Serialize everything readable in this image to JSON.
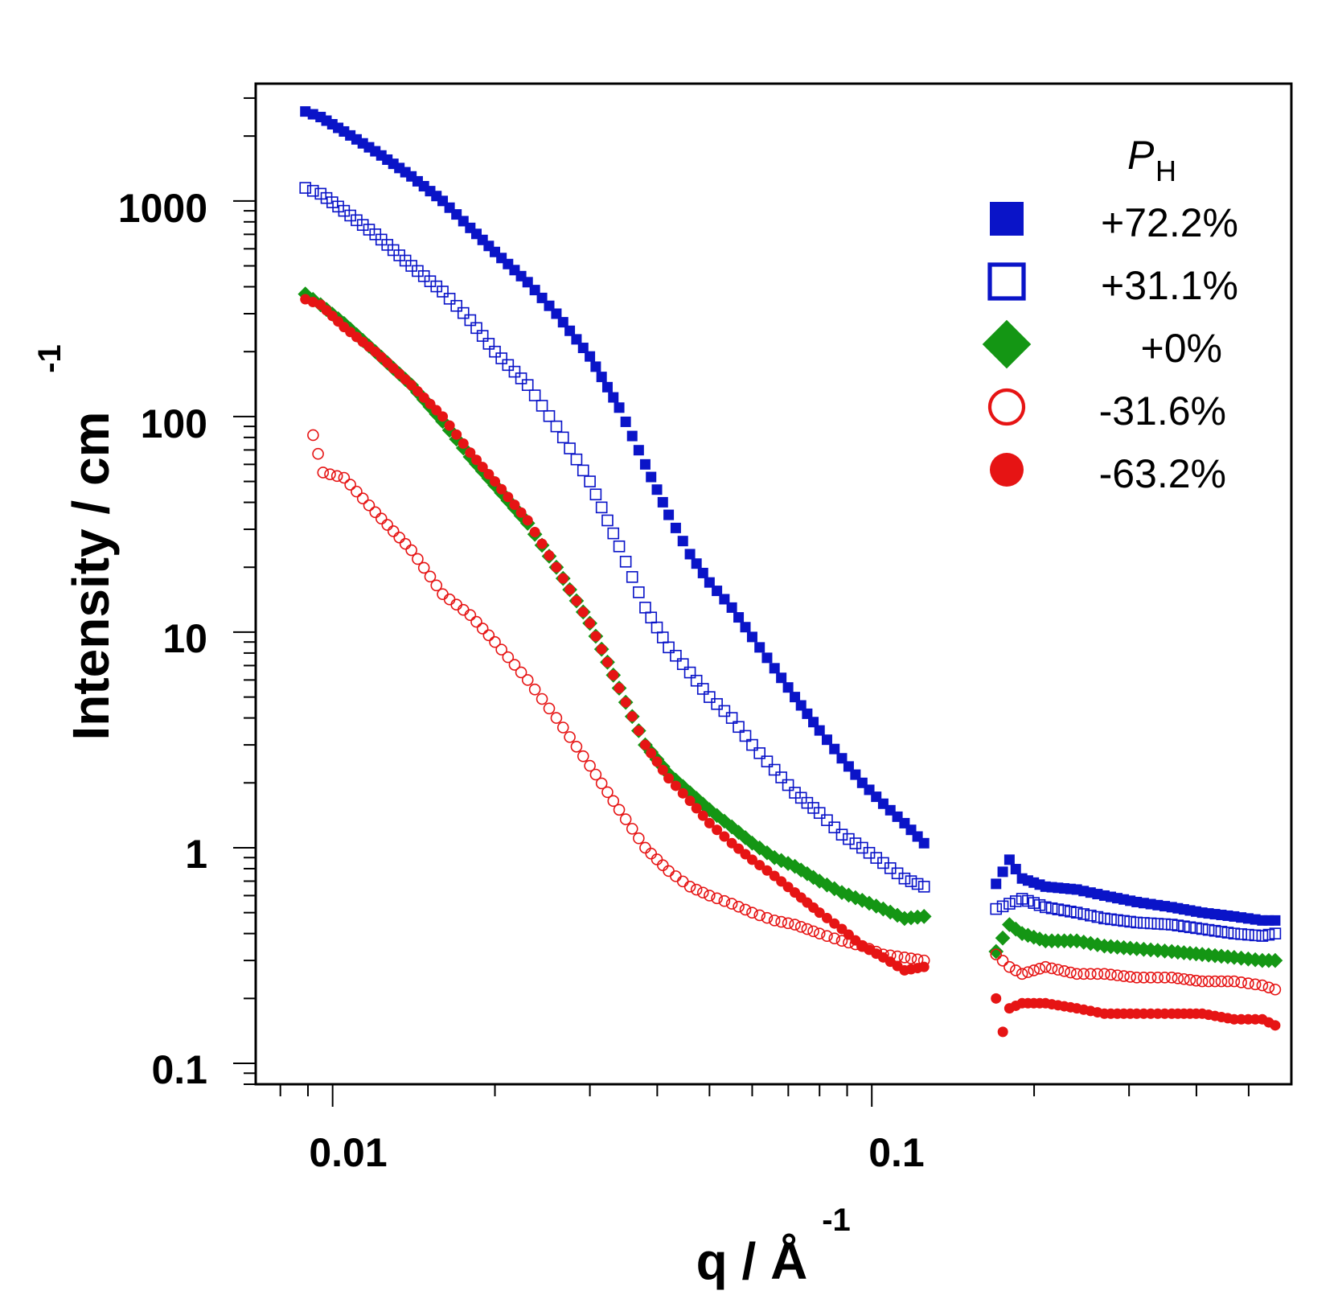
{
  "chart_data": {
    "type": "scatter",
    "x_scale": "log",
    "y_scale": "log",
    "xlim": [
      0.0072,
      0.6
    ],
    "ylim": [
      0.08,
      3500
    ],
    "x_ticks": [
      {
        "value": 0.01,
        "label": "0.01"
      },
      {
        "value": 0.1,
        "label": "0.1"
      }
    ],
    "y_ticks": [
      {
        "value": 0.1,
        "label": "0.1"
      },
      {
        "value": 1,
        "label": "1"
      },
      {
        "value": 10,
        "label": "10"
      },
      {
        "value": 100,
        "label": "100"
      },
      {
        "value": 1000,
        "label": "1000"
      }
    ],
    "xlabel": {
      "main": "q / Å",
      "sup": "-1"
    },
    "ylabel": {
      "main": "Intensity / cm",
      "sup": "-1"
    },
    "legend": {
      "title_main": "P",
      "title_sub": "H",
      "placement": "top-right"
    },
    "series": [
      {
        "name": "+72.2%",
        "marker": "square-filled",
        "color": "#0a14c8",
        "points": [
          [
            0.0089,
            2600
          ],
          [
            0.0095,
            2450
          ],
          [
            0.0105,
            2100
          ],
          [
            0.012,
            1700
          ],
          [
            0.014,
            1300
          ],
          [
            0.016,
            1000
          ],
          [
            0.018,
            750
          ],
          [
            0.02,
            580
          ],
          [
            0.023,
            420
          ],
          [
            0.026,
            300
          ],
          [
            0.03,
            190
          ],
          [
            0.034,
            110
          ],
          [
            0.038,
            60
          ],
          [
            0.042,
            35
          ],
          [
            0.046,
            23
          ],
          [
            0.05,
            17
          ],
          [
            0.055,
            13
          ],
          [
            0.06,
            9.5
          ],
          [
            0.066,
            6.8
          ],
          [
            0.072,
            5.0
          ],
          [
            0.08,
            3.5
          ],
          [
            0.088,
            2.6
          ],
          [
            0.096,
            2.0
          ],
          [
            0.105,
            1.6
          ],
          [
            0.115,
            1.3
          ],
          [
            0.125,
            1.05
          ],
          [
            0.17,
            0.68
          ],
          [
            0.18,
            0.88
          ],
          [
            0.19,
            0.72
          ],
          [
            0.21,
            0.66
          ],
          [
            0.24,
            0.64
          ],
          [
            0.27,
            0.6
          ],
          [
            0.31,
            0.56
          ],
          [
            0.36,
            0.53
          ],
          [
            0.41,
            0.5
          ],
          [
            0.47,
            0.48
          ],
          [
            0.53,
            0.46
          ],
          [
            0.56,
            0.46
          ]
        ]
      },
      {
        "name": "+31.1%",
        "marker": "square-open",
        "color": "#0a14c8",
        "points": [
          [
            0.0089,
            1150
          ],
          [
            0.0095,
            1080
          ],
          [
            0.0105,
            900
          ],
          [
            0.012,
            700
          ],
          [
            0.014,
            500
          ],
          [
            0.016,
            380
          ],
          [
            0.018,
            280
          ],
          [
            0.02,
            200
          ],
          [
            0.023,
            140
          ],
          [
            0.026,
            90
          ],
          [
            0.03,
            50
          ],
          [
            0.034,
            25
          ],
          [
            0.038,
            13
          ],
          [
            0.042,
            8.5
          ],
          [
            0.046,
            6.5
          ],
          [
            0.05,
            5.0
          ],
          [
            0.055,
            4.0
          ],
          [
            0.06,
            3.0
          ],
          [
            0.066,
            2.3
          ],
          [
            0.072,
            1.8
          ],
          [
            0.08,
            1.45
          ],
          [
            0.088,
            1.15
          ],
          [
            0.096,
            1.0
          ],
          [
            0.105,
            0.85
          ],
          [
            0.115,
            0.72
          ],
          [
            0.125,
            0.66
          ],
          [
            0.17,
            0.52
          ],
          [
            0.18,
            0.55
          ],
          [
            0.19,
            0.58
          ],
          [
            0.21,
            0.53
          ],
          [
            0.24,
            0.5
          ],
          [
            0.27,
            0.47
          ],
          [
            0.31,
            0.45
          ],
          [
            0.36,
            0.44
          ],
          [
            0.41,
            0.42
          ],
          [
            0.47,
            0.4
          ],
          [
            0.53,
            0.39
          ],
          [
            0.56,
            0.4
          ]
        ]
      },
      {
        "name": "+0%",
        "marker": "diamond-filled",
        "color": "#149614",
        "points": [
          [
            0.0089,
            370
          ],
          [
            0.0095,
            330
          ],
          [
            0.0105,
            270
          ],
          [
            0.012,
            200
          ],
          [
            0.014,
            140
          ],
          [
            0.016,
            95
          ],
          [
            0.018,
            65
          ],
          [
            0.02,
            48
          ],
          [
            0.023,
            32
          ],
          [
            0.026,
            20
          ],
          [
            0.03,
            11
          ],
          [
            0.034,
            5.5
          ],
          [
            0.038,
            3.0
          ],
          [
            0.042,
            2.2
          ],
          [
            0.046,
            1.8
          ],
          [
            0.05,
            1.5
          ],
          [
            0.055,
            1.25
          ],
          [
            0.06,
            1.05
          ],
          [
            0.066,
            0.9
          ],
          [
            0.072,
            0.82
          ],
          [
            0.08,
            0.7
          ],
          [
            0.088,
            0.62
          ],
          [
            0.096,
            0.57
          ],
          [
            0.105,
            0.52
          ],
          [
            0.115,
            0.47
          ],
          [
            0.125,
            0.48
          ],
          [
            0.17,
            0.33
          ],
          [
            0.18,
            0.44
          ],
          [
            0.19,
            0.4
          ],
          [
            0.21,
            0.37
          ],
          [
            0.24,
            0.37
          ],
          [
            0.27,
            0.35
          ],
          [
            0.31,
            0.34
          ],
          [
            0.36,
            0.33
          ],
          [
            0.41,
            0.32
          ],
          [
            0.47,
            0.31
          ],
          [
            0.53,
            0.3
          ],
          [
            0.56,
            0.3
          ]
        ]
      },
      {
        "name": "-31.6%",
        "marker": "circle-open",
        "color": "#e61414",
        "points": [
          [
            0.0092,
            82
          ],
          [
            0.0096,
            55
          ],
          [
            0.0105,
            52
          ],
          [
            0.012,
            36
          ],
          [
            0.014,
            24
          ],
          [
            0.016,
            15
          ],
          [
            0.018,
            12
          ],
          [
            0.02,
            9.0
          ],
          [
            0.023,
            6.0
          ],
          [
            0.026,
            4.0
          ],
          [
            0.03,
            2.4
          ],
          [
            0.034,
            1.5
          ],
          [
            0.038,
            1.0
          ],
          [
            0.042,
            0.78
          ],
          [
            0.046,
            0.66
          ],
          [
            0.05,
            0.6
          ],
          [
            0.055,
            0.55
          ],
          [
            0.06,
            0.5
          ],
          [
            0.066,
            0.46
          ],
          [
            0.072,
            0.44
          ],
          [
            0.08,
            0.4
          ],
          [
            0.088,
            0.37
          ],
          [
            0.096,
            0.35
          ],
          [
            0.105,
            0.32
          ],
          [
            0.115,
            0.31
          ],
          [
            0.125,
            0.3
          ],
          [
            0.17,
            0.32
          ],
          [
            0.18,
            0.28
          ],
          [
            0.19,
            0.26
          ],
          [
            0.21,
            0.28
          ],
          [
            0.24,
            0.26
          ],
          [
            0.27,
            0.26
          ],
          [
            0.31,
            0.25
          ],
          [
            0.36,
            0.25
          ],
          [
            0.41,
            0.24
          ],
          [
            0.47,
            0.24
          ],
          [
            0.53,
            0.23
          ],
          [
            0.56,
            0.22
          ]
        ]
      },
      {
        "name": "-63.2%",
        "marker": "circle-filled",
        "color": "#e61414",
        "points": [
          [
            0.0089,
            350
          ],
          [
            0.0095,
            330
          ],
          [
            0.0105,
            260
          ],
          [
            0.012,
            200
          ],
          [
            0.014,
            140
          ],
          [
            0.016,
            100
          ],
          [
            0.018,
            68
          ],
          [
            0.02,
            50
          ],
          [
            0.023,
            33
          ],
          [
            0.026,
            20
          ],
          [
            0.03,
            11
          ],
          [
            0.034,
            5.5
          ],
          [
            0.038,
            3.0
          ],
          [
            0.042,
            2.1
          ],
          [
            0.046,
            1.65
          ],
          [
            0.05,
            1.3
          ],
          [
            0.055,
            1.05
          ],
          [
            0.06,
            0.88
          ],
          [
            0.066,
            0.74
          ],
          [
            0.072,
            0.62
          ],
          [
            0.08,
            0.5
          ],
          [
            0.088,
            0.42
          ],
          [
            0.096,
            0.35
          ],
          [
            0.105,
            0.31
          ],
          [
            0.115,
            0.27
          ],
          [
            0.125,
            0.28
          ],
          [
            0.17,
            0.2
          ],
          [
            0.175,
            0.14
          ],
          [
            0.18,
            0.18
          ],
          [
            0.19,
            0.19
          ],
          [
            0.21,
            0.19
          ],
          [
            0.24,
            0.18
          ],
          [
            0.27,
            0.17
          ],
          [
            0.31,
            0.17
          ],
          [
            0.36,
            0.17
          ],
          [
            0.41,
            0.17
          ],
          [
            0.47,
            0.16
          ],
          [
            0.53,
            0.16
          ],
          [
            0.56,
            0.15
          ]
        ]
      }
    ]
  }
}
